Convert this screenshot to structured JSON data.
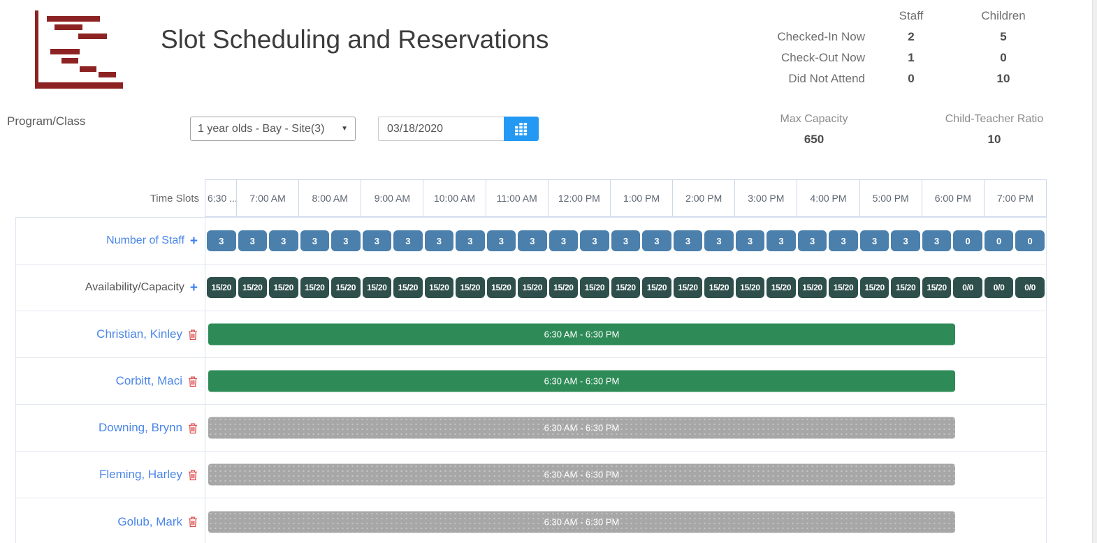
{
  "header": {
    "title": "Slot Scheduling and Reservations",
    "stats": {
      "col_staff": "Staff",
      "col_children": "Children",
      "rows": [
        {
          "label": "Checked-In Now",
          "staff": "2",
          "children": "5"
        },
        {
          "label": "Check-Out Now",
          "staff": "1",
          "children": "0"
        },
        {
          "label": "Did Not Attend",
          "staff": "0",
          "children": "10"
        }
      ]
    }
  },
  "filters": {
    "program_label": "Program/Class",
    "program_selected": "1 year olds - Bay - Site(3)",
    "date_value": "03/18/2020",
    "max_capacity_label": "Max Capacity",
    "max_capacity_value": "650",
    "ratio_label": "Child-Teacher Ratio",
    "ratio_value": "10"
  },
  "schedule": {
    "time_slots_label": "Time Slots",
    "time_headers": [
      "6:30 ...",
      "7:00 AM",
      "8:00 AM",
      "9:00 AM",
      "10:00 AM",
      "11:00 AM",
      "12:00 PM",
      "1:00 PM",
      "2:00 PM",
      "3:00 PM",
      "4:00 PM",
      "5:00 PM",
      "6:00 PM",
      "7:00 PM"
    ],
    "staff_row": {
      "label": "Number of Staff",
      "values": [
        "3",
        "3",
        "3",
        "3",
        "3",
        "3",
        "3",
        "3",
        "3",
        "3",
        "3",
        "3",
        "3",
        "3",
        "3",
        "3",
        "3",
        "3",
        "3",
        "3",
        "3",
        "3",
        "3",
        "3",
        "0",
        "0",
        "0"
      ]
    },
    "capacity_row": {
      "label": "Availability/Capacity",
      "values": [
        "15/20",
        "15/20",
        "15/20",
        "15/20",
        "15/20",
        "15/20",
        "15/20",
        "15/20",
        "15/20",
        "15/20",
        "15/20",
        "15/20",
        "15/20",
        "15/20",
        "15/20",
        "15/20",
        "15/20",
        "15/20",
        "15/20",
        "15/20",
        "15/20",
        "15/20",
        "15/20",
        "15/20",
        "0/0",
        "0/0",
        "0/0"
      ]
    },
    "reservations": [
      {
        "name": "Christian, Kinley",
        "time_range": "6:30 AM - 6:30 PM",
        "status": "checked_in"
      },
      {
        "name": "Corbitt, Maci",
        "time_range": "6:30 AM - 6:30 PM",
        "status": "checked_in"
      },
      {
        "name": "Downing, Brynn",
        "time_range": "6:30 AM - 6:30 PM",
        "status": "scheduled"
      },
      {
        "name": "Fleming, Harley",
        "time_range": "6:30 AM - 6:30 PM",
        "status": "scheduled"
      },
      {
        "name": "Golub, Mark",
        "time_range": "6:30 AM - 6:30 PM",
        "status": "scheduled"
      }
    ]
  },
  "colors": {
    "logo_maroon": "#8c2322",
    "accent_blue": "#4a86e8",
    "danger_red": "#db4a4a",
    "staff_badge": "#4b7fac",
    "capacity_badge": "#2e4f4b",
    "bar_checked_in": "#2e8b57",
    "bar_scheduled": "#a7a7a7",
    "calendar_button": "#2499f4"
  }
}
